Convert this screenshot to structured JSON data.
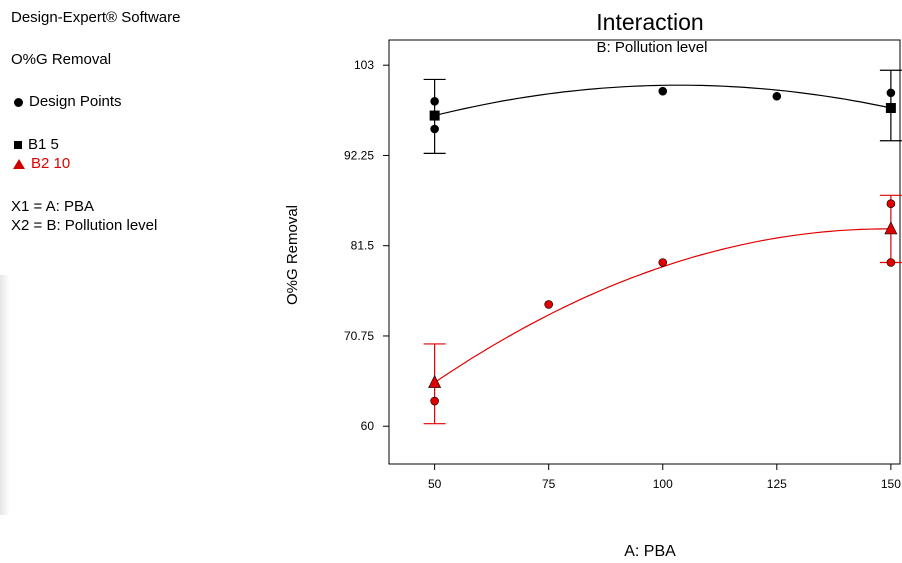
{
  "legend": {
    "software": "Design-Expert® Software",
    "response": "O%G Removal",
    "design_points": "Design Points",
    "b1": "B1 5",
    "b2": "B2 10",
    "x1": "X1 = A: PBA",
    "x2": "X2 = B: Pollution level"
  },
  "colors": {
    "series_b1": "#000000",
    "series_b2": "#e00000"
  },
  "chart_data": {
    "type": "line",
    "title": "Interaction",
    "subtitle": "B: Pollution level",
    "xlabel": "A: PBA",
    "ylabel": "O%G Removal",
    "xlim": [
      40,
      152
    ],
    "ylim": [
      55.5,
      106
    ],
    "x_ticks": [
      "50",
      "75",
      "100",
      "125",
      "150"
    ],
    "y_ticks": [
      "60",
      "70.75",
      "81.5",
      "92.25",
      "103"
    ],
    "grid": false,
    "series": [
      {
        "name": "B1 5",
        "color": "#000000",
        "marker": "square",
        "fit_x": [
          50,
          100,
          150
        ],
        "fit_y": [
          97.0,
          100.6,
          97.9
        ],
        "means": [
          {
            "x": 50,
            "y": 97.0
          },
          {
            "x": 150,
            "y": 97.9
          }
        ],
        "error_bars": [
          {
            "x": 50,
            "low": 92.5,
            "high": 101.3
          },
          {
            "x": 150,
            "low": 94.0,
            "high": 102.4
          }
        ],
        "points": [
          {
            "x": 50,
            "y": 98.7
          },
          {
            "x": 50,
            "y": 95.4
          },
          {
            "x": 100,
            "y": 99.9
          },
          {
            "x": 125,
            "y": 99.3
          },
          {
            "x": 150,
            "y": 99.7
          }
        ]
      },
      {
        "name": "B2 10",
        "color": "#e00000",
        "marker": "triangle",
        "fit_x": [
          50,
          100,
          150
        ],
        "fit_y": [
          65.2,
          79.0,
          83.5
        ],
        "means": [
          {
            "x": 50,
            "y": 65.2
          },
          {
            "x": 150,
            "y": 83.5
          }
        ],
        "error_bars": [
          {
            "x": 50,
            "low": 60.3,
            "high": 69.8
          },
          {
            "x": 150,
            "low": 79.5,
            "high": 87.5
          }
        ],
        "points": [
          {
            "x": 50,
            "y": 63.0
          },
          {
            "x": 75,
            "y": 74.5
          },
          {
            "x": 100,
            "y": 79.5
          },
          {
            "x": 150,
            "y": 86.5
          },
          {
            "x": 150,
            "y": 79.5
          }
        ]
      }
    ]
  }
}
